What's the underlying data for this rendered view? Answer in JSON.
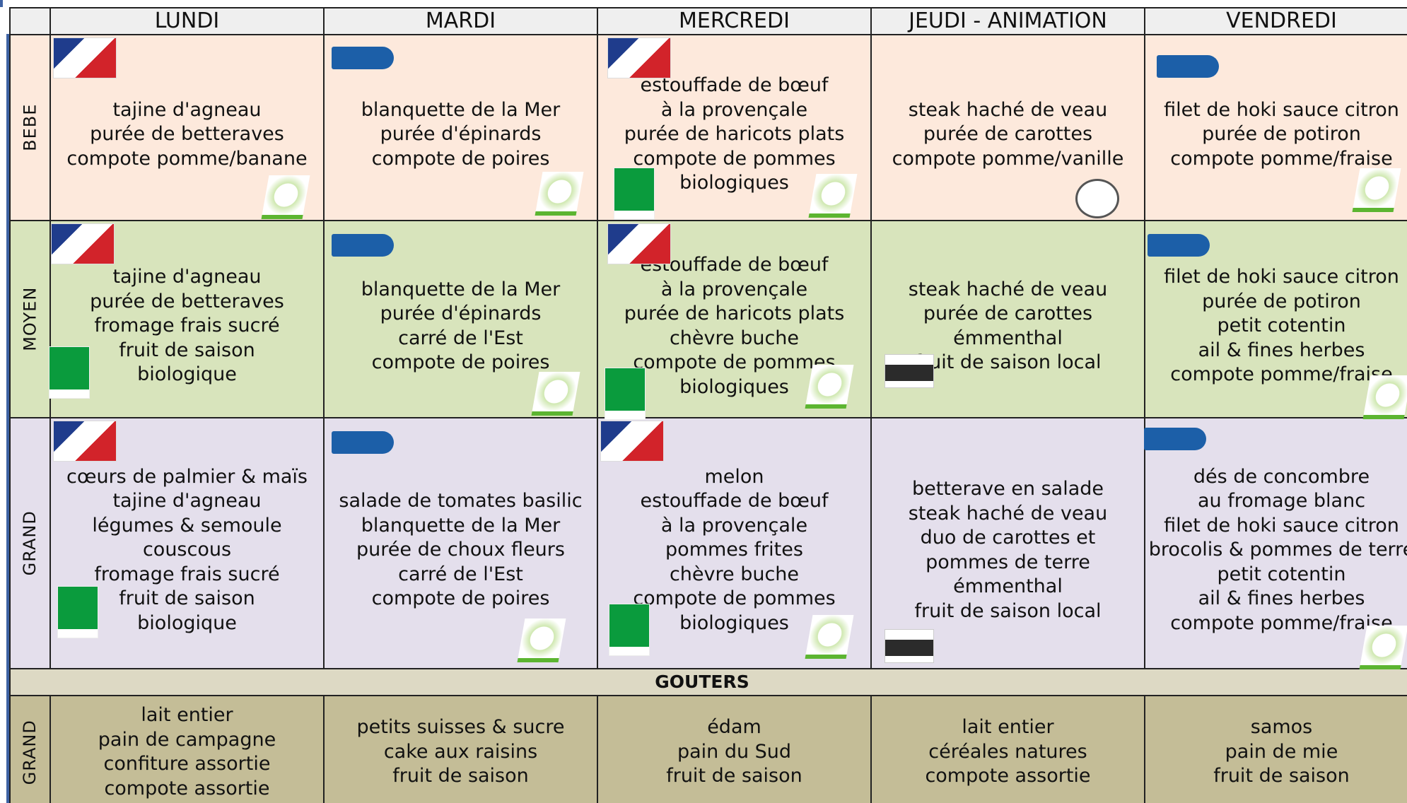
{
  "headers": [
    "LUNDI",
    "MARDI",
    "MERCREDI",
    "JEUDI - ANIMATION",
    "VENDREDI"
  ],
  "rows": [
    {
      "label": "BEBE",
      "cells": [
        [
          "tajine d'agneau",
          "purée de betteraves",
          "compote pomme/banane"
        ],
        [
          "blanquette de la Mer",
          "purée d'épinards",
          "compote de poires"
        ],
        [
          "estouffade de bœuf",
          "à la provençale",
          "purée de haricots plats",
          "compote de pommes",
          "biologiques"
        ],
        [
          "steak haché de veau",
          "purée de carottes",
          "compote pomme/vanille"
        ],
        [
          "filet de hoki sauce citron",
          "purée de potiron",
          "compote pomme/fraise"
        ]
      ]
    },
    {
      "label": "MOYEN",
      "cells": [
        [
          "tajine d'agneau",
          "purée de betteraves",
          "fromage frais sucré",
          "fruit de saison",
          "biologique"
        ],
        [
          "blanquette de la Mer",
          "purée d'épinards",
          "carré de l'Est",
          "compote de poires"
        ],
        [
          "estouffade de bœuf",
          "à la provençale",
          "purée de haricots plats",
          "chèvre buche",
          "compote de pommes",
          "biologiques"
        ],
        [
          "steak haché de veau",
          "purée de carottes",
          "émmenthal",
          "fruit de saison local"
        ],
        [
          "filet de hoki sauce citron",
          "purée de potiron",
          "petit cotentin",
          "ail & fines herbes",
          "compote pomme/fraise"
        ]
      ]
    },
    {
      "label": "GRAND",
      "cells": [
        [
          "cœurs de palmier & maïs",
          "tajine d'agneau",
          "légumes & semoule",
          "couscous",
          "fromage frais sucré",
          "fruit de saison",
          "biologique"
        ],
        [
          "salade de tomates basilic",
          "blanquette de la Mer",
          "purée de choux fleurs",
          "carré de l'Est",
          "compote de poires"
        ],
        [
          "melon",
          "estouffade de bœuf",
          "à la provençale",
          "pommes frites",
          "chèvre buche",
          "compote de pommes",
          "biologiques"
        ],
        [
          "betterave en salade",
          "steak haché de veau",
          "duo de carottes et",
          "pommes de terre",
          "émmenthal",
          "fruit de saison  local"
        ],
        [
          "dés de concombre",
          "au fromage blanc",
          "filet de hoki sauce citron",
          "brocolis & pommes de terre",
          "petit cotentin",
          "ail & fines herbes",
          "compote pomme/fraise"
        ]
      ]
    }
  ],
  "gouters": {
    "title": "GOUTERS",
    "rows": [
      {
        "label": "GRAND",
        "cells": [
          [
            "lait entier",
            "pain de campagne",
            "confiture assortie",
            "compote assortie"
          ],
          [
            "petits suisses & sucre",
            "cake aux raisins",
            "fruit de saison"
          ],
          [
            "édam",
            "pain du Sud",
            "fruit de saison"
          ],
          [
            "lait entier",
            "céréales natures",
            "compote assortie"
          ],
          [
            "samos",
            "pain de mie",
            "fruit de saison"
          ]
        ]
      }
    ]
  }
}
